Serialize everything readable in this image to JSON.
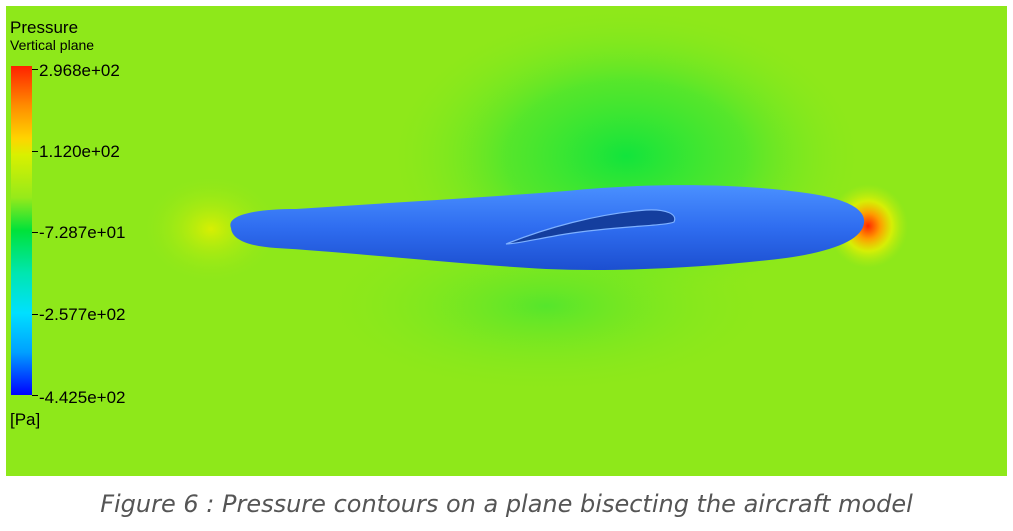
{
  "legend": {
    "title": "Pressure",
    "subtitle": "Vertical plane",
    "unit": "[Pa]",
    "ticks": [
      "2.968e+02",
      "1.120e+02",
      "-7.287e+01",
      "-2.577e+02",
      "-4.425e+02"
    ]
  },
  "caption": "Figure 6 : Pressure contours on a plane bisecting the aircraft model",
  "colors": {
    "background_field": "#8ee81a",
    "low_pressure_field": "#1ee64a",
    "body": "#2f6df0",
    "stagnation": "#ff3a00"
  }
}
